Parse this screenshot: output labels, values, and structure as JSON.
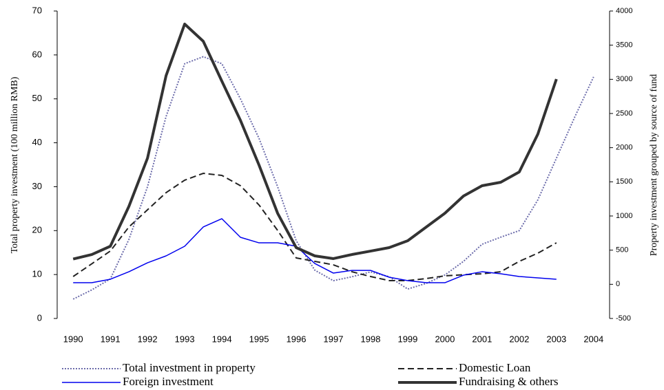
{
  "chart_data": {
    "type": "line",
    "ylabel": "Total property investment (100 million RMB)",
    "y2label": "Property investment grouped by source of fund",
    "x": [
      1990,
      1990.5,
      1991,
      1991.5,
      1992,
      1992.5,
      1993,
      1993.5,
      1994,
      1994.5,
      1995,
      1995.5,
      1996,
      1996.5,
      1997,
      1997.5,
      1998,
      1998.5,
      1999,
      1999.5,
      2000,
      2000.5,
      2001,
      2001.5,
      2002,
      2002.5,
      2003,
      2003.5,
      2004
    ],
    "xlim": [
      1989.57,
      2004.43
    ],
    "xticks": [
      1990,
      1991,
      1992,
      1993,
      1994,
      1995,
      1996,
      1997,
      1998,
      1999,
      2000,
      2001,
      2002,
      2003,
      2004
    ],
    "ylim": [
      0,
      70
    ],
    "yticks": [
      0,
      10,
      20,
      30,
      40,
      50,
      60,
      70
    ],
    "y2lim": [
      -500,
      4000
    ],
    "y2ticks": [
      -500,
      0,
      500,
      1000,
      1500,
      2000,
      2500,
      3000,
      3500,
      4000
    ],
    "series": [
      {
        "name": "Total investment in property",
        "color": "#6b6baa",
        "style": "dotted",
        "values": [
          4.4,
          6.5,
          9,
          18,
          30,
          46,
          58,
          59.6,
          58,
          50,
          41,
          30,
          17.7,
          11,
          8.6,
          9.5,
          10.6,
          9.5,
          6.7,
          8,
          9.9,
          13,
          16.9,
          18.5,
          20,
          27,
          36.5,
          46,
          55
        ]
      },
      {
        "name": "Domestic Loan",
        "color": "#222222",
        "style": "dashed",
        "axis": "y2",
        "values": [
          114,
          300,
          487,
          839,
          1091,
          1342,
          1524,
          1624,
          1594,
          1443,
          1161,
          789,
          386,
          336,
          285,
          184,
          114,
          54,
          54,
          84,
          124,
          140,
          154,
          184,
          336,
          456,
          607,
          null,
          null
        ]
      },
      {
        "name": "Foreign investment",
        "color": "#0000ee",
        "style": "solid",
        "axis": "y2",
        "values": [
          23,
          23,
          74,
          184,
          315,
          416,
          557,
          839,
          960,
          688,
          607,
          607,
          557,
          305,
          164,
          204,
          204,
          104,
          54,
          23,
          23,
          134,
          184,
          154,
          114,
          94,
          74,
          null,
          null
        ]
      },
      {
        "name": "Fundraising & others",
        "color": "#333333",
        "style": "thick",
        "axis": "y2",
        "values": [
          370,
          436,
          557,
          1141,
          1846,
          3054,
          3809,
          3557,
          2973,
          2399,
          1745,
          1040,
          537,
          416,
          376,
          436,
          486,
          537,
          638,
          839,
          1040,
          1292,
          1443,
          1493,
          1644,
          2198,
          3003,
          null,
          null
        ]
      }
    ]
  }
}
